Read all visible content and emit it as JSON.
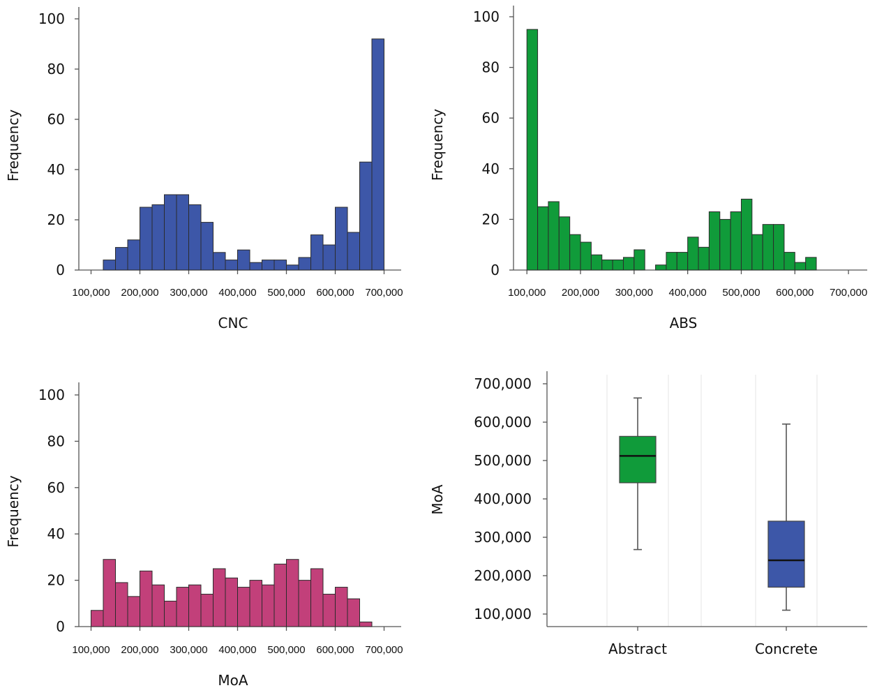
{
  "chart_data": [
    {
      "type": "bar",
      "subtype": "histogram",
      "xlabel": "CNC",
      "ylabel": "Frequency",
      "ylim": [
        0,
        100
      ],
      "yticks": [
        "0",
        "20",
        "40",
        "60",
        "80",
        "100"
      ],
      "xticks": [
        "100,000",
        "200,000",
        "300,000",
        "400,000",
        "500,000",
        "600,000",
        "700,000"
      ],
      "xlim": [
        75000,
        735000
      ],
      "bin_start": 125000,
      "bin_width": 25000,
      "color": "#3d57a8",
      "values": [
        4,
        9,
        12,
        25,
        26,
        30,
        30,
        26,
        19,
        7,
        4,
        8,
        3,
        4,
        4,
        2,
        5,
        14,
        10,
        25,
        15,
        43,
        92
      ]
    },
    {
      "type": "bar",
      "subtype": "histogram",
      "xlabel": "ABS",
      "ylabel": "Frequency",
      "ylim": [
        0,
        100
      ],
      "yticks": [
        "0",
        "20",
        "40",
        "60",
        "80",
        "100"
      ],
      "xticks": [
        "100,000",
        "200,000",
        "300,000",
        "400,000",
        "500,000",
        "600,000",
        "700,000"
      ],
      "xlim": [
        75000,
        735000
      ],
      "bin_start": 100000,
      "bin_width": 20000,
      "color": "#109b3a",
      "values": [
        95,
        25,
        27,
        21,
        14,
        11,
        6,
        4,
        4,
        5,
        8,
        0,
        2,
        7,
        7,
        13,
        9,
        23,
        20,
        23,
        28,
        14,
        18,
        18,
        7,
        3,
        5
      ]
    },
    {
      "type": "bar",
      "subtype": "histogram",
      "xlabel": "MoA",
      "ylabel": "Frequency",
      "ylim": [
        0,
        100
      ],
      "yticks": [
        "0",
        "20",
        "40",
        "60",
        "80",
        "100"
      ],
      "xticks": [
        "100,000",
        "200,000",
        "300,000",
        "400,000",
        "500,000",
        "600,000",
        "700,000"
      ],
      "xlim": [
        75000,
        735000
      ],
      "bin_start": 100000,
      "bin_width": 25000,
      "color": "#c2407a",
      "values": [
        7,
        29,
        19,
        13,
        24,
        18,
        11,
        17,
        18,
        14,
        25,
        21,
        17,
        20,
        18,
        27,
        29,
        20,
        25,
        14,
        17,
        12,
        2
      ]
    },
    {
      "type": "box",
      "ylabel": "MoA",
      "ylim": [
        65000,
        730000
      ],
      "yticks": [
        "100,000",
        "200,000",
        "300,000",
        "400,000",
        "500,000",
        "600,000",
        "700,000"
      ],
      "categories": [
        "Abstract",
        "Concrete"
      ],
      "boxes": [
        {
          "name": "Abstract",
          "min": 268000,
          "q1": 442000,
          "median": 512000,
          "q3": 563000,
          "max": 663000,
          "color": "#109b3a"
        },
        {
          "name": "Concrete",
          "min": 110000,
          "q1": 170000,
          "median": 240000,
          "q3": 342000,
          "max": 595000,
          "color": "#3d57a8"
        }
      ]
    }
  ]
}
